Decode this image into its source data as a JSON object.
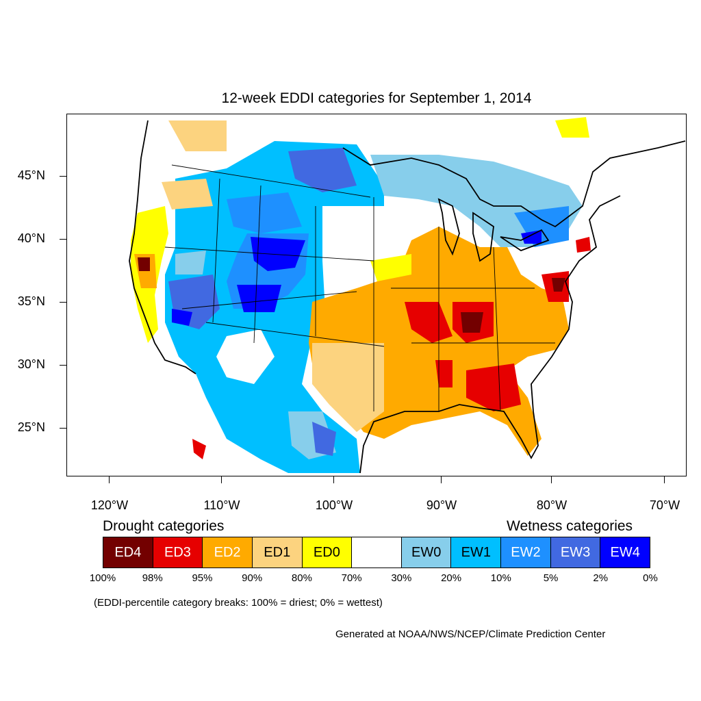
{
  "title": "12-week EDDI categories for September 1, 2014",
  "y_axis_labels": [
    "45°N",
    "40°N",
    "35°N",
    "30°N",
    "25°N"
  ],
  "x_axis_labels": [
    "120°W",
    "110°W",
    "100°W",
    "90°W",
    "80°W",
    "70°W"
  ],
  "legend": {
    "drought_heading": "Drought categories",
    "wetness_heading": "Wetness categories",
    "categories": [
      {
        "label": "ED4",
        "color": "#730000",
        "text_color": "#ffffff"
      },
      {
        "label": "ED3",
        "color": "#e60000",
        "text_color": "#ffffff"
      },
      {
        "label": "ED2",
        "color": "#ffaa00",
        "text_color": "#ffffff"
      },
      {
        "label": "ED1",
        "color": "#fcd37f",
        "text_color": "#000000"
      },
      {
        "label": "ED0",
        "color": "#ffff00",
        "text_color": "#000000"
      },
      {
        "label": "",
        "color": "#ffffff",
        "text_color": "#000000"
      },
      {
        "label": "EW0",
        "color": "#87ceeb",
        "text_color": "#000000"
      },
      {
        "label": "EW1",
        "color": "#00bfff",
        "text_color": "#000000"
      },
      {
        "label": "EW2",
        "color": "#1e90ff",
        "text_color": "#ffffff"
      },
      {
        "label": "EW3",
        "color": "#4169e1",
        "text_color": "#ffffff"
      },
      {
        "label": "EW4",
        "color": "#0000ff",
        "text_color": "#ffffff"
      }
    ],
    "percentile_breaks": [
      "100%",
      "98%",
      "95%",
      "90%",
      "80%",
      "70%",
      "30%",
      "20%",
      "10%",
      "5%",
      "2%",
      "0%"
    ]
  },
  "note": "(EDDI-percentile category breaks: 100% = driest; 0% = wettest)",
  "credit": "Generated at NOAA/NWS/NCEP/Climate Prediction Center"
}
